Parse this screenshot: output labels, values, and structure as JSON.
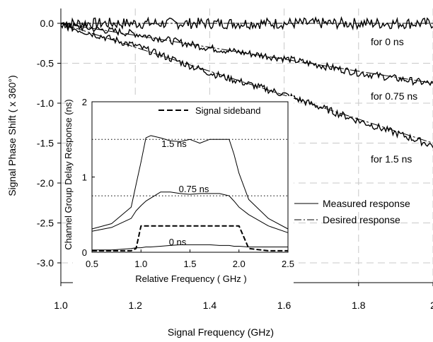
{
  "chart_data": [
    {
      "type": "line",
      "xlabel": "Signal Frequency (GHz)",
      "ylabel": "Signal Phase Shift ( x 360°)",
      "xlim": [
        1.0,
        2.0
      ],
      "ylim": [
        -3.25,
        0.05
      ],
      "x_ticks": [
        "1.0",
        "1.2",
        "1.4",
        "1.6",
        "1.8",
        "2"
      ],
      "y_ticks": [
        "0.0",
        "-0.5",
        "-1.0",
        "-1.5",
        "-2.0",
        "-2.5",
        "-3.0"
      ],
      "grid": "dashed",
      "legend": {
        "placement": "right",
        "entries": [
          "Measured response",
          "Desired response"
        ]
      },
      "annotations": [
        "for 0 ns",
        "for 0.75 ns",
        "for 1.5 ns"
      ],
      "x": [
        1.0,
        1.2,
        1.4,
        1.6,
        1.8,
        2.0
      ],
      "series": [
        {
          "name": "Desired response",
          "group": "0 ns",
          "values": [
            0.0,
            0.0,
            0.0,
            0.0,
            0.0,
            0.0
          ]
        },
        {
          "name": "Desired response",
          "group": "0.75 ns",
          "values": [
            0.0,
            -0.15,
            -0.3,
            -0.45,
            -0.6,
            -0.75
          ]
        },
        {
          "name": "Desired response",
          "group": "1.5 ns",
          "values": [
            0.0,
            -0.3,
            -0.6,
            -0.9,
            -1.2,
            -1.5
          ]
        },
        {
          "name": "Measured response",
          "group": "0 ns",
          "values": [
            0.0,
            0.0,
            0.0,
            0.0,
            0.0,
            0.0
          ]
        },
        {
          "name": "Measured response",
          "group": "0.75 ns",
          "values": [
            -0.02,
            -0.13,
            -0.31,
            -0.44,
            -0.62,
            -0.76
          ]
        },
        {
          "name": "Measured response",
          "group": "1.5 ns",
          "values": [
            -0.02,
            -0.28,
            -0.62,
            -0.89,
            -1.22,
            -1.53
          ]
        }
      ]
    },
    {
      "type": "line",
      "xlabel": "Relative Frequency ( GHz )",
      "ylabel": "Channel Group Delay Response (ns)",
      "xlim": [
        0.5,
        2.5
      ],
      "ylim": [
        0,
        2
      ],
      "x_ticks": [
        "0.5",
        "1.0",
        "1.5",
        "2.0",
        "2.5"
      ],
      "y_ticks": [
        "0",
        "1",
        "2"
      ],
      "legend": {
        "placement": "top-right",
        "entries": [
          "Signal sideband"
        ]
      },
      "annotations": [
        "1.5 ns",
        "0.75 ns",
        "0 ns"
      ],
      "reference_levels": [
        1.5,
        0.75
      ],
      "x": [
        0.5,
        0.7,
        0.9,
        0.95,
        1.0,
        1.05,
        1.1,
        1.2,
        1.3,
        1.4,
        1.5,
        1.6,
        1.7,
        1.8,
        1.9,
        1.95,
        2.0,
        2.1,
        2.3,
        2.5
      ],
      "series": [
        {
          "name": "1.5 ns",
          "values": [
            0.31,
            0.38,
            0.6,
            0.9,
            1.2,
            1.52,
            1.55,
            1.52,
            1.48,
            1.47,
            1.5,
            1.45,
            1.5,
            1.5,
            1.5,
            1.3,
            1.05,
            0.7,
            0.45,
            0.31
          ]
        },
        {
          "name": "0.75 ns",
          "values": [
            0.28,
            0.33,
            0.45,
            0.55,
            0.62,
            0.68,
            0.72,
            0.8,
            0.8,
            0.78,
            0.77,
            0.78,
            0.78,
            0.78,
            0.75,
            0.68,
            0.6,
            0.5,
            0.35,
            0.26
          ]
        },
        {
          "name": "0 ns",
          "values": [
            0.03,
            0.03,
            0.05,
            0.06,
            0.06,
            0.07,
            0.07,
            0.08,
            0.09,
            0.1,
            0.1,
            0.1,
            0.1,
            0.09,
            0.09,
            0.08,
            0.08,
            0.07,
            0.07,
            0.07
          ]
        },
        {
          "name": "Signal sideband",
          "values": [
            0.02,
            0.02,
            0.02,
            0.05,
            0.35,
            0.35,
            0.35,
            0.35,
            0.35,
            0.35,
            0.35,
            0.35,
            0.35,
            0.35,
            0.35,
            0.35,
            0.35,
            0.05,
            0.02,
            0.02
          ]
        }
      ]
    }
  ]
}
